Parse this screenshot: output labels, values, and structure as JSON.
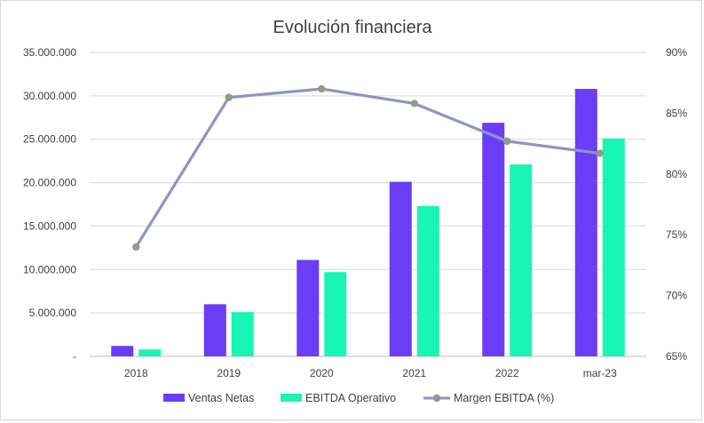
{
  "chart_data": {
    "type": "bar",
    "title": "Evolución financiera",
    "categories": [
      "2018",
      "2019",
      "2020",
      "2021",
      "2022",
      "mar-23"
    ],
    "series": [
      {
        "name": "Ventas Netas",
        "type": "bar",
        "axis": "left",
        "color": "#6a3df6",
        "values": [
          1200000,
          6000000,
          11100000,
          20100000,
          26900000,
          30800000
        ]
      },
      {
        "name": "EBITDA Operativo",
        "type": "bar",
        "axis": "left",
        "color": "#19f5b4",
        "values": [
          800000,
          5100000,
          9700000,
          17300000,
          22100000,
          25100000
        ]
      },
      {
        "name": "Margen EBITDA (%)",
        "type": "line",
        "axis": "right",
        "color": "#8e94c6",
        "marker_color": "#8f9c86",
        "values": [
          74.0,
          86.3,
          87.0,
          85.8,
          82.7,
          81.7
        ]
      }
    ],
    "y_left": {
      "ylim": [
        0,
        35000000
      ],
      "tick_labels": [
        "-",
        "5.000.000",
        "10.000.000",
        "15.000.000",
        "20.000.000",
        "25.000.000",
        "30.000.000",
        "35.000.000"
      ]
    },
    "y_right": {
      "ylim": [
        65,
        90
      ],
      "tick_labels": [
        "65%",
        "70%",
        "75%",
        "80%",
        "85%",
        "90%"
      ]
    },
    "grid": true,
    "legend_position": "bottom"
  }
}
